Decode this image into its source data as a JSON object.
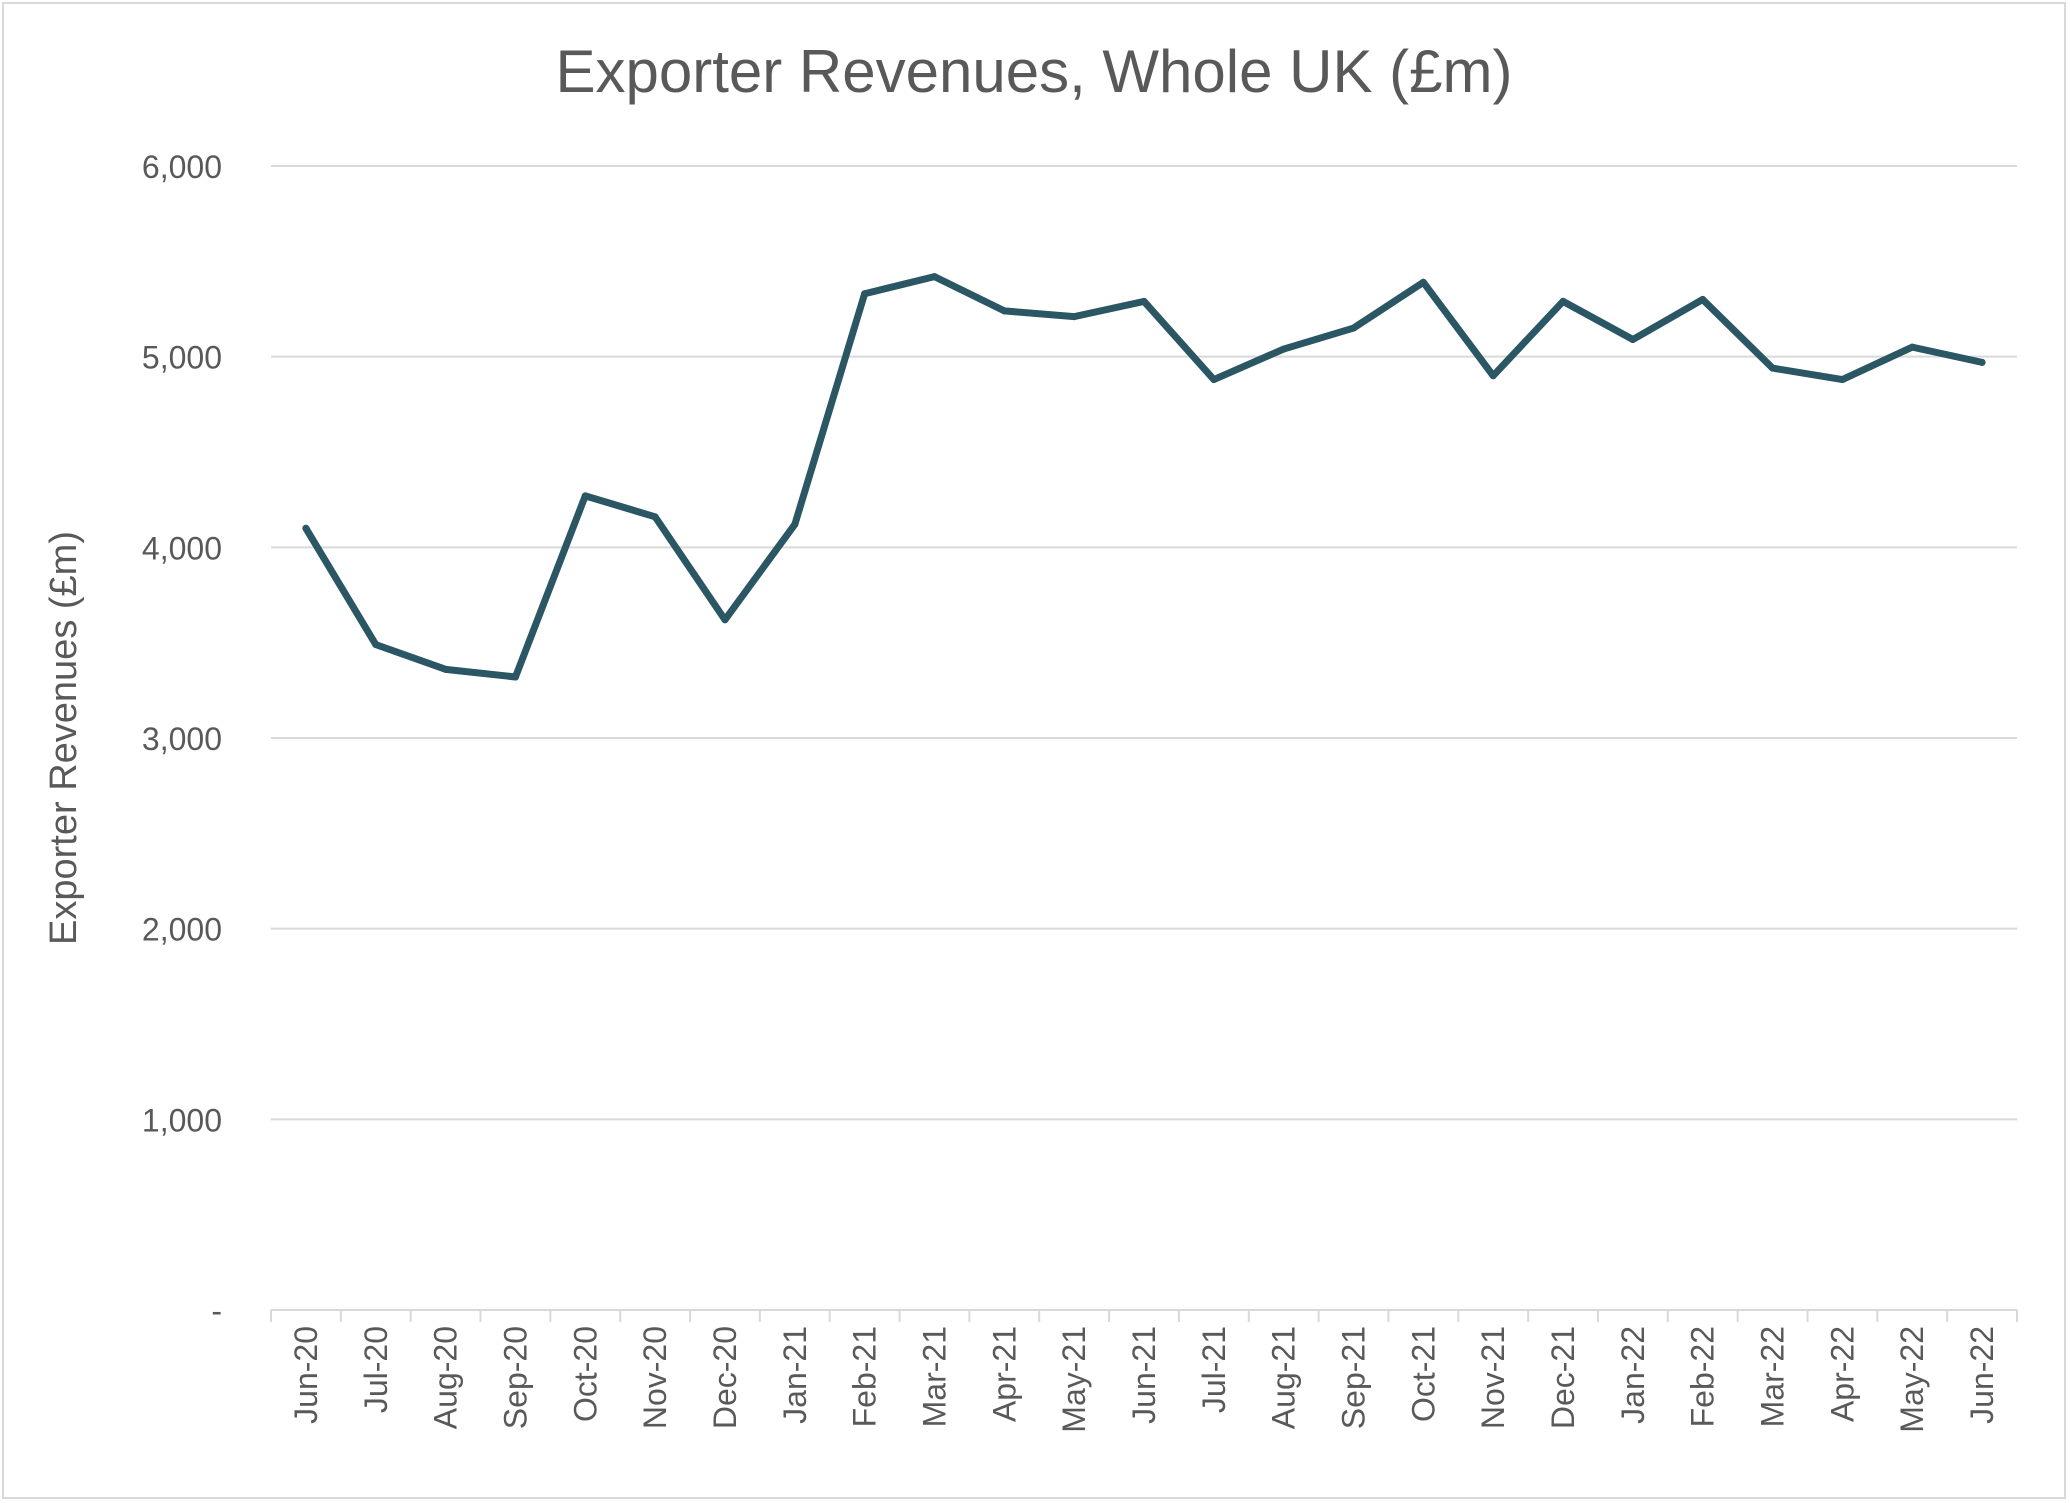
{
  "chart_data": {
    "type": "line",
    "title": "Exporter Revenues, Whole UK (£m)",
    "xlabel": "",
    "ylabel": "Exporter Revenues (£m)",
    "ylim": [
      0,
      6000
    ],
    "yticks": [
      0,
      1000,
      2000,
      3000,
      4000,
      5000,
      6000
    ],
    "ytick_labels": [
      "-",
      "1,000",
      "2,000",
      "3,000",
      "4,000",
      "5,000",
      "6,000"
    ],
    "grid": true,
    "line_color": "#2b5664",
    "categories": [
      "Jun-20",
      "Jul-20",
      "Aug-20",
      "Sep-20",
      "Oct-20",
      "Nov-20",
      "Dec-20",
      "Jan-21",
      "Feb-21",
      "Mar-21",
      "Apr-21",
      "May-21",
      "Jun-21",
      "Jul-21",
      "Aug-21",
      "Sep-21",
      "Oct-21",
      "Nov-21",
      "Dec-21",
      "Jan-22",
      "Feb-22",
      "Mar-22",
      "Apr-22",
      "May-22",
      "Jun-22"
    ],
    "series": [
      {
        "values": [
          4100,
          3490,
          3360,
          3320,
          4270,
          4160,
          3620,
          4120,
          5330,
          5420,
          5240,
          5210,
          5290,
          4880,
          5040,
          5150,
          5390,
          4900,
          5290,
          5090,
          5300,
          4940,
          4880,
          5050,
          4970
        ]
      }
    ]
  }
}
